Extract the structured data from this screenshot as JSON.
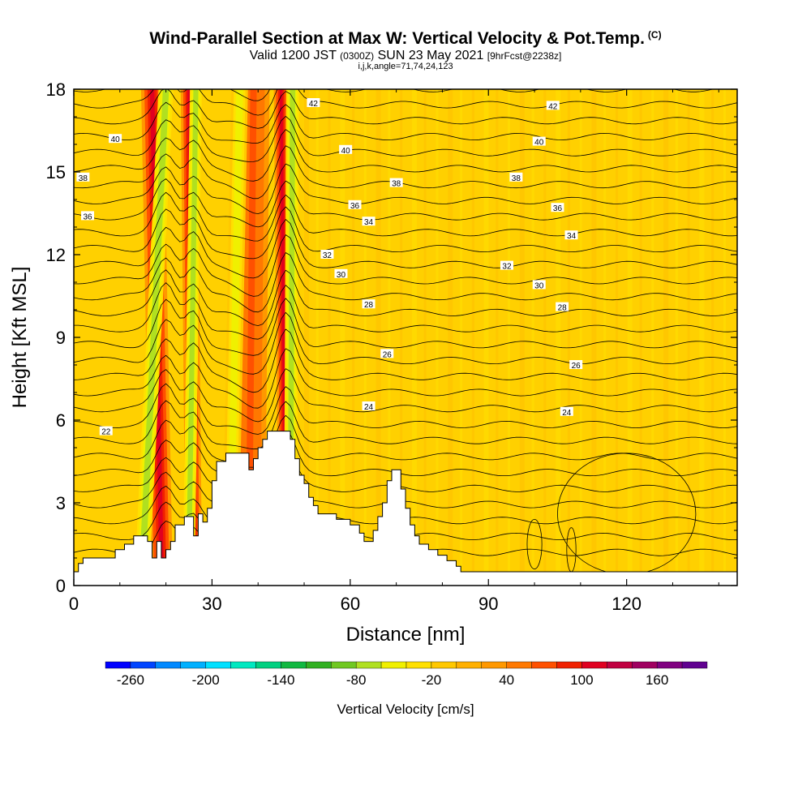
{
  "header": {
    "title_main": "Wind-Parallel Section at Max W: Vertical Velocity & Pot.Temp.",
    "title_copyright": "(C)",
    "subtitle_a": "Valid 1200 JST",
    "subtitle_b": "(0300Z)",
    "subtitle_c": "SUN 23 May 2021",
    "subtitle_d": "[9hrFcst@2238z]",
    "params": "i,j,k,angle=71,74,24,123"
  },
  "colors": {
    "background_field": "#ffd000",
    "terrain": "#ffffff",
    "contour": "#000000"
  },
  "chart_data": {
    "type": "heatmap",
    "xlabel": "Distance [nm]",
    "ylabel": "Height [Kft MSL]",
    "xlim": [
      0,
      144
    ],
    "ylim": [
      0,
      18
    ],
    "xticks": [
      0,
      30,
      60,
      90,
      120
    ],
    "yticks": [
      0,
      3,
      6,
      9,
      12,
      15,
      18
    ],
    "colorbar": {
      "label": "Vertical Velocity [cm/s]",
      "tick_values": [
        -260,
        -200,
        -140,
        -80,
        -20,
        40,
        100,
        160
      ],
      "min": -280,
      "max": 200,
      "colors": [
        "#0000ff",
        "#0044ff",
        "#0088ff",
        "#00b0ff",
        "#00e0ff",
        "#00e8c0",
        "#00d080",
        "#10b840",
        "#30b020",
        "#70c820",
        "#b0e020",
        "#f0f000",
        "#ffe000",
        "#ffc800",
        "#ffb000",
        "#ff9800",
        "#ff7800",
        "#ff5000",
        "#f02000",
        "#e00020",
        "#c00040",
        "#a00060",
        "#800080",
        "#600090"
      ]
    },
    "terrain_profile": [
      [
        0,
        0.5
      ],
      [
        1,
        0.5
      ],
      [
        1,
        0.8
      ],
      [
        2,
        0.8
      ],
      [
        2,
        1.0
      ],
      [
        9,
        1.0
      ],
      [
        9,
        1.3
      ],
      [
        11,
        1.3
      ],
      [
        11,
        1.5
      ],
      [
        13,
        1.5
      ],
      [
        13,
        1.8
      ],
      [
        16,
        1.8
      ],
      [
        16,
        1.6
      ],
      [
        17,
        1.6
      ],
      [
        17,
        1.0
      ],
      [
        18,
        1.0
      ],
      [
        18,
        1.6
      ],
      [
        19,
        1.6
      ],
      [
        19,
        1.0
      ],
      [
        20,
        1.0
      ],
      [
        20,
        1.3
      ],
      [
        21,
        1.3
      ],
      [
        21,
        1.6
      ],
      [
        22,
        1.6
      ],
      [
        22,
        2.2
      ],
      [
        24,
        2.2
      ],
      [
        24,
        2.5
      ],
      [
        26,
        2.5
      ],
      [
        26,
        1.8
      ],
      [
        27,
        1.8
      ],
      [
        27,
        2.6
      ],
      [
        28,
        2.6
      ],
      [
        28,
        2.3
      ],
      [
        29,
        2.3
      ],
      [
        29,
        2.8
      ],
      [
        30,
        2.8
      ],
      [
        30,
        3.8
      ],
      [
        31,
        3.8
      ],
      [
        31,
        4.5
      ],
      [
        33,
        4.5
      ],
      [
        33,
        4.8
      ],
      [
        38,
        4.8
      ],
      [
        38,
        4.2
      ],
      [
        39,
        4.2
      ],
      [
        39,
        4.6
      ],
      [
        40,
        4.6
      ],
      [
        40,
        5.0
      ],
      [
        41,
        5.0
      ],
      [
        41,
        5.3
      ],
      [
        42,
        5.3
      ],
      [
        42,
        5.6
      ],
      [
        47,
        5.6
      ],
      [
        47,
        5.3
      ],
      [
        48,
        5.3
      ],
      [
        48,
        4.6
      ],
      [
        49,
        4.6
      ],
      [
        49,
        4.0
      ],
      [
        50,
        4.0
      ],
      [
        50,
        3.7
      ],
      [
        51,
        3.7
      ],
      [
        51,
        3.2
      ],
      [
        52,
        3.2
      ],
      [
        52,
        2.9
      ],
      [
        53,
        2.9
      ],
      [
        53,
        2.6
      ],
      [
        57,
        2.6
      ],
      [
        57,
        2.4
      ],
      [
        60,
        2.4
      ],
      [
        60,
        2.2
      ],
      [
        62,
        2.2
      ],
      [
        62,
        1.9
      ],
      [
        63,
        1.9
      ],
      [
        63,
        1.6
      ],
      [
        65,
        1.6
      ],
      [
        65,
        2.0
      ],
      [
        66,
        2.0
      ],
      [
        66,
        2.5
      ],
      [
        67,
        2.5
      ],
      [
        67,
        3.0
      ],
      [
        68,
        3.0
      ],
      [
        68,
        3.8
      ],
      [
        69,
        3.8
      ],
      [
        69,
        4.2
      ],
      [
        71,
        4.2
      ],
      [
        71,
        3.5
      ],
      [
        72,
        3.5
      ],
      [
        72,
        2.8
      ],
      [
        73,
        2.8
      ],
      [
        73,
        2.2
      ],
      [
        74,
        2.2
      ],
      [
        74,
        1.8
      ],
      [
        75,
        1.8
      ],
      [
        75,
        1.5
      ],
      [
        77,
        1.5
      ],
      [
        77,
        1.3
      ],
      [
        79,
        1.3
      ],
      [
        79,
        1.1
      ],
      [
        81,
        1.1
      ],
      [
        81,
        0.9
      ],
      [
        83,
        0.9
      ],
      [
        83,
        0.7
      ],
      [
        84,
        0.7
      ],
      [
        84,
        0.5
      ],
      [
        144,
        0.5
      ]
    ],
    "updrafts": [
      {
        "base_x": 19,
        "top_x": 17,
        "width": 2.4,
        "w": 100
      },
      {
        "base_x": 26,
        "top_x": 25,
        "width": 1.8,
        "w": 100
      },
      {
        "base_x": 38,
        "top_x": 39,
        "width": 3.5,
        "w": 70
      },
      {
        "base_x": 46,
        "top_x": 45,
        "width": 1.6,
        "w": 100
      }
    ],
    "downdrafts": [
      {
        "base_x": 15,
        "top_x": 20,
        "width": 1.6,
        "w": -80
      },
      {
        "base_x": 25,
        "top_x": 26.5,
        "width": 1.3,
        "w": -80
      },
      {
        "base_x": 34,
        "top_x": 36,
        "width": 1.8,
        "w": -50
      },
      {
        "base_x": 47,
        "top_x": 47.5,
        "width": 1.4,
        "w": -80
      }
    ],
    "isentropes": [
      {
        "theta": 22,
        "y_left": 4.3,
        "label_x": 7,
        "label_y": 5.6
      },
      {
        "theta": 24,
        "y_left": 6.2,
        "label_x": 64,
        "label_y": 6.5
      },
      {
        "theta": 24,
        "y_left": 6.2,
        "label_x": 107,
        "label_y": 6.3
      },
      {
        "theta": 26,
        "y_left": 7.4,
        "label_x": 68,
        "label_y": 8.4
      },
      {
        "theta": 26,
        "y_left": 7.4,
        "label_x": 109,
        "label_y": 8.0
      },
      {
        "theta": 28,
        "y_left": 8.5,
        "label_x": 64,
        "label_y": 10.2
      },
      {
        "theta": 28,
        "y_left": 8.5,
        "label_x": 106,
        "label_y": 10.1
      },
      {
        "theta": 30,
        "y_left": 9.6,
        "label_x": 58,
        "label_y": 11.3
      },
      {
        "theta": 30,
        "y_left": 9.6,
        "label_x": 101,
        "label_y": 10.9
      },
      {
        "theta": 32,
        "y_left": 10.8,
        "label_x": 55,
        "label_y": 12.0
      },
      {
        "theta": 32,
        "y_left": 10.8,
        "label_x": 94,
        "label_y": 11.6
      },
      {
        "theta": 34,
        "y_left": 12.0,
        "label_x": 64,
        "label_y": 13.2
      },
      {
        "theta": 34,
        "y_left": 12.0,
        "label_x": 108,
        "label_y": 12.7
      },
      {
        "theta": 36,
        "y_left": 13.4,
        "label_x": 3,
        "label_y": 13.4
      },
      {
        "theta": 36,
        "y_left": 13.4,
        "label_x": 61,
        "label_y": 13.8
      },
      {
        "theta": 36,
        "y_left": 13.4,
        "label_x": 105,
        "label_y": 13.7
      },
      {
        "theta": 38,
        "y_left": 14.8,
        "label_x": 2,
        "label_y": 14.8
      },
      {
        "theta": 38,
        "y_left": 14.8,
        "label_x": 70,
        "label_y": 14.6
      },
      {
        "theta": 38,
        "y_left": 14.8,
        "label_x": 96,
        "label_y": 14.8
      },
      {
        "theta": 40,
        "y_left": 16.2,
        "label_x": 9,
        "label_y": 16.2
      },
      {
        "theta": 40,
        "y_left": 16.2,
        "label_x": 59,
        "label_y": 15.8
      },
      {
        "theta": 40,
        "y_left": 16.2,
        "label_x": 101,
        "label_y": 16.1
      },
      {
        "theta": 42,
        "y_left": 17.5,
        "label_x": 52,
        "label_y": 17.5
      },
      {
        "theta": 42,
        "y_left": 17.5,
        "label_x": 104,
        "label_y": 17.4
      }
    ]
  }
}
